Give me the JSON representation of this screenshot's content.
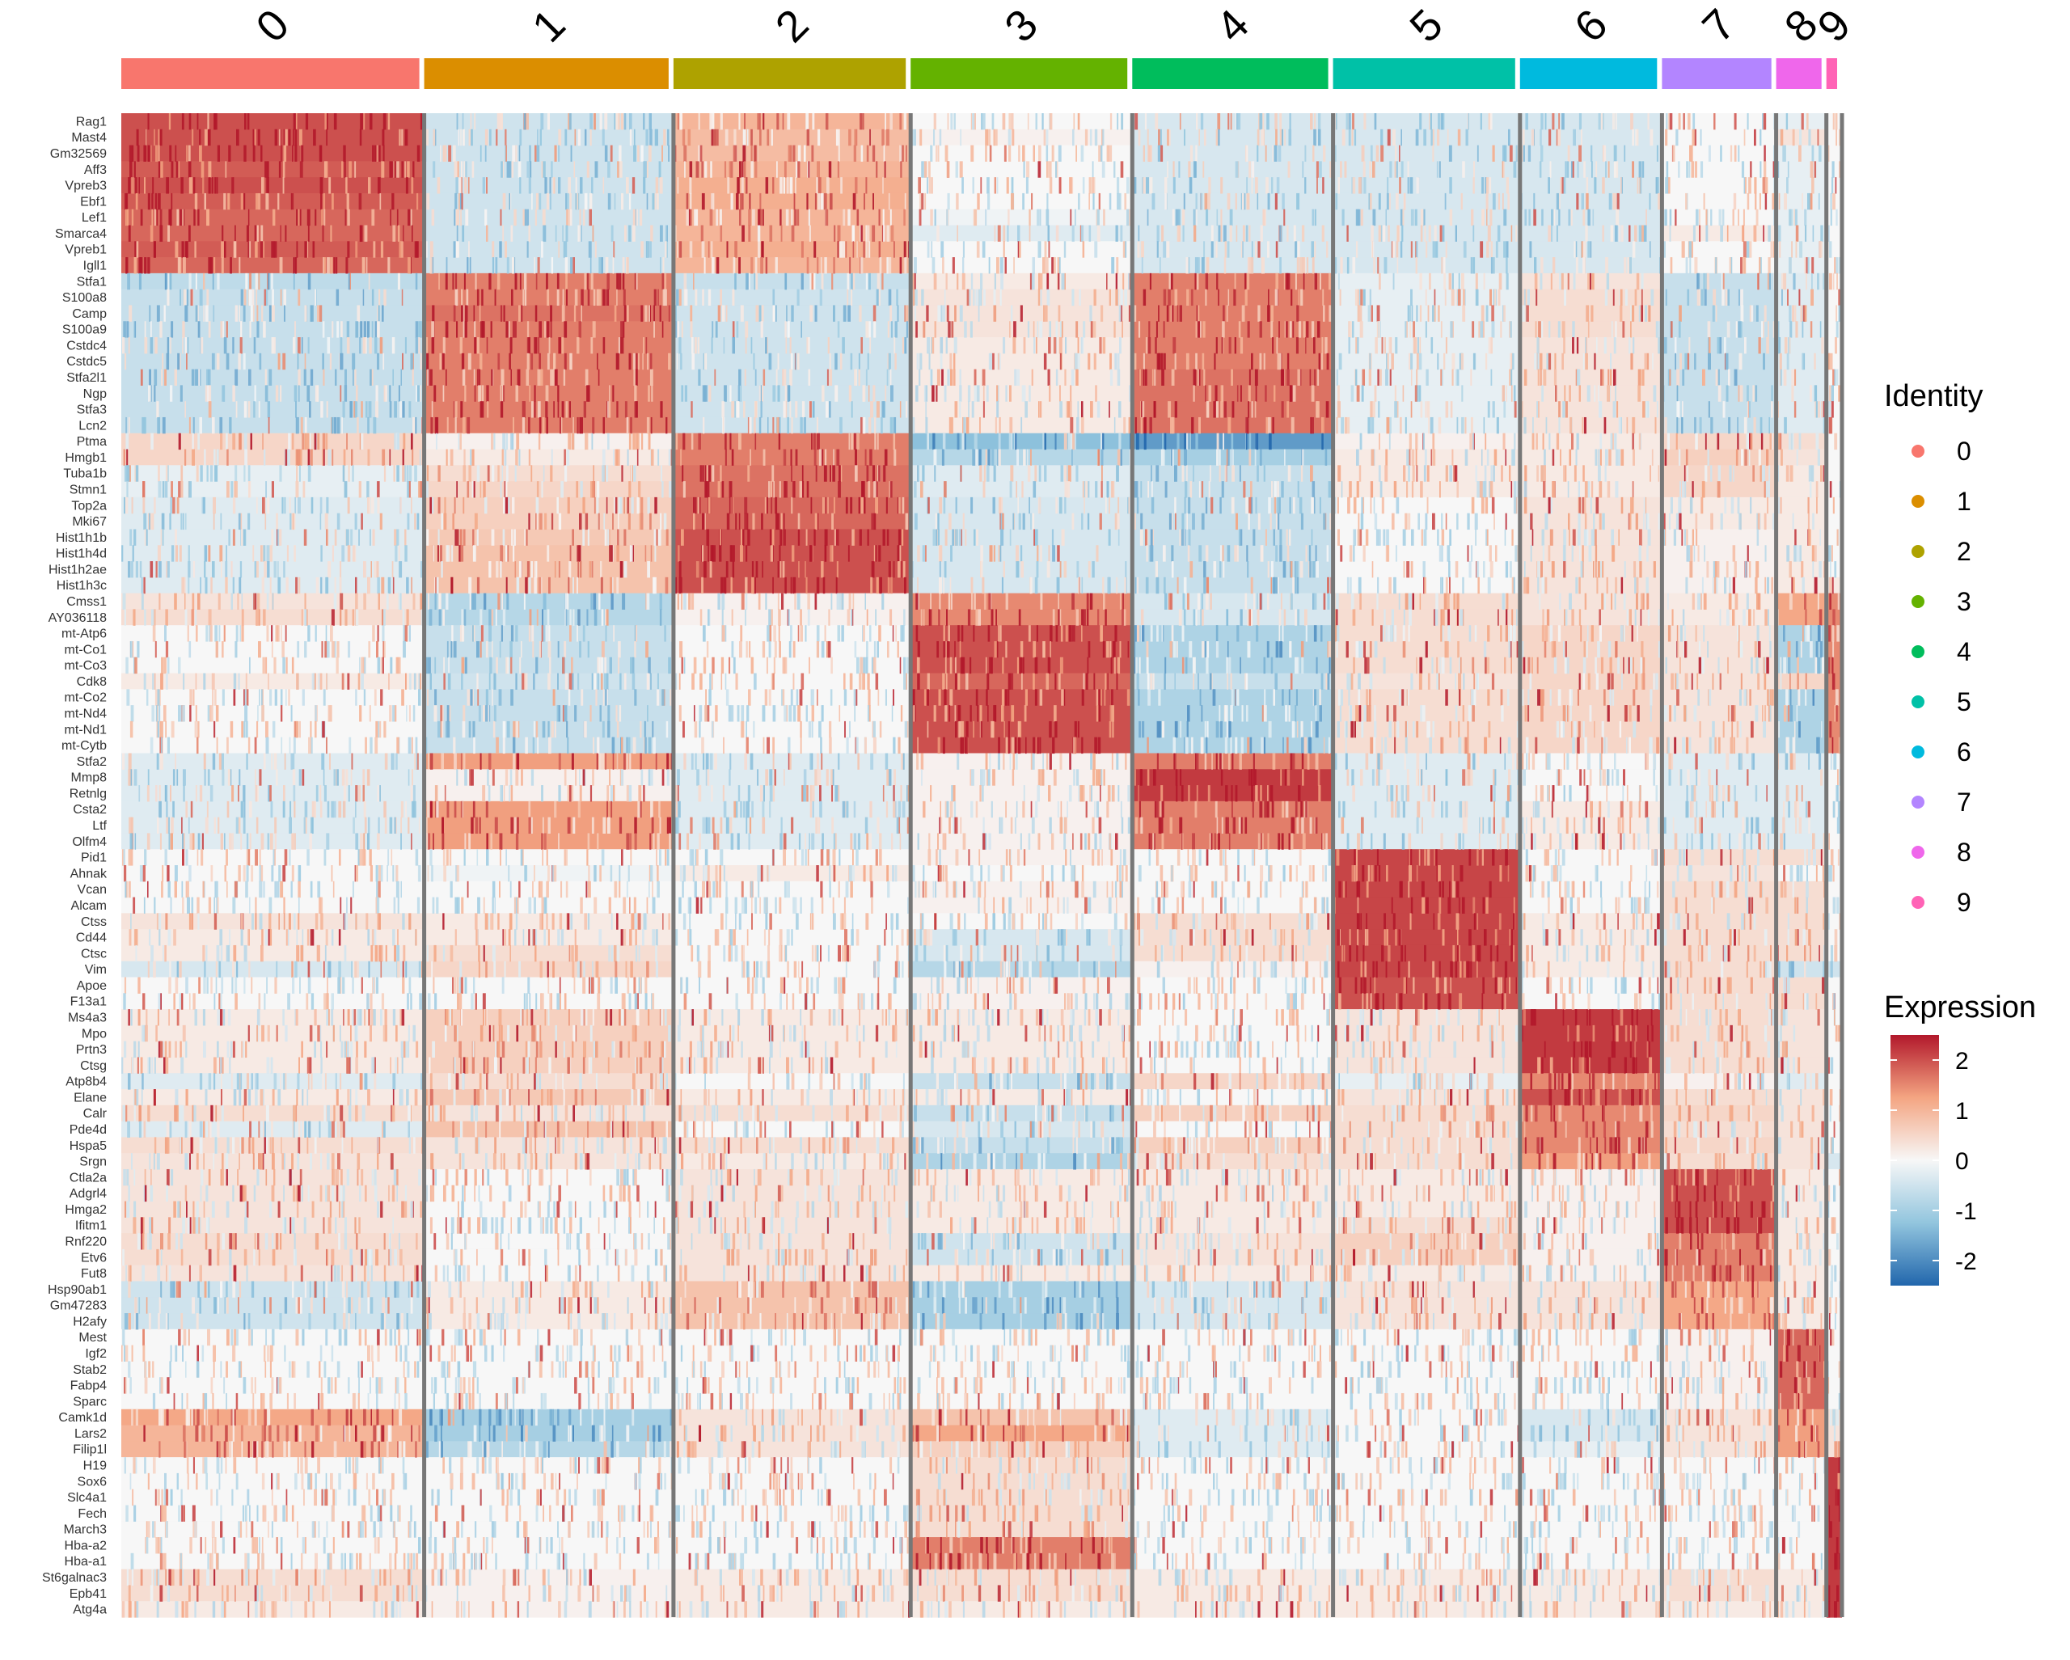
{
  "chart_data": {
    "type": "heatmap",
    "title": "",
    "clusters": [
      {
        "label": "0",
        "color": "#F8766D",
        "fraction": 0.175
      },
      {
        "label": "1",
        "color": "#DB8E00",
        "fraction": 0.144
      },
      {
        "label": "2",
        "color": "#AEA200",
        "fraction": 0.137
      },
      {
        "label": "3",
        "color": "#64B200",
        "fraction": 0.128
      },
      {
        "label": "4",
        "color": "#00BD5C",
        "fraction": 0.116
      },
      {
        "label": "5",
        "color": "#00C1A7",
        "fraction": 0.108
      },
      {
        "label": "6",
        "color": "#00BADE",
        "fraction": 0.082
      },
      {
        "label": "7",
        "color": "#B385FF",
        "fraction": 0.066
      },
      {
        "label": "8",
        "color": "#EF67EB",
        "fraction": 0.029
      },
      {
        "label": "9",
        "color": "#FF63B6",
        "fraction": 0.009
      }
    ],
    "genes": [
      "Rag1",
      "Mast4",
      "Gm32569",
      "Aff3",
      "Vpreb3",
      "Ebf1",
      "Lef1",
      "Smarca4",
      "Vpreb1",
      "Igll1",
      "Stfa1",
      "S100a8",
      "Camp",
      "S100a9",
      "Cstdc4",
      "Cstdc5",
      "Stfa2l1",
      "Ngp",
      "Stfa3",
      "Lcn2",
      "Ptma",
      "Hmgb1",
      "Tuba1b",
      "Stmn1",
      "Top2a",
      "Mki67",
      "Hist1h1b",
      "Hist1h4d",
      "Hist1h2ae",
      "Hist1h3c",
      "Cmss1",
      "AY036118",
      "mt-Atp6",
      "mt-Co1",
      "mt-Co3",
      "Cdk8",
      "mt-Co2",
      "mt-Nd4",
      "mt-Nd1",
      "mt-Cytb",
      "Stfa2",
      "Mmp8",
      "Retnlg",
      "Csta2",
      "Ltf",
      "Olfm4",
      "Pid1",
      "Ahnak",
      "Vcan",
      "Alcam",
      "Ctss",
      "Cd44",
      "Ctsc",
      "Vim",
      "Apoe",
      "F13a1",
      "Ms4a3",
      "Mpo",
      "Prtn3",
      "Ctsg",
      "Atp8b4",
      "Elane",
      "Calr",
      "Pde4d",
      "Hspa5",
      "Srgn",
      "Ctla2a",
      "Adgrl4",
      "Hmga2",
      "Ifitm1",
      "Rnf220",
      "Etv6",
      "Fut8",
      "Hsp90ab1",
      "Gm47283",
      "H2afy",
      "Mest",
      "Igf2",
      "Stab2",
      "Fabp4",
      "Sparc",
      "Camk1d",
      "Lars2",
      "Filip1l",
      "H19",
      "Sox6",
      "Slc4a1",
      "Fech",
      "March3",
      "Hba-a2",
      "Hba-a1",
      "St6galnac3",
      "Epb41",
      "Atg4a"
    ],
    "mean_expression": [
      [
        2.0,
        -0.5,
        1.0,
        0,
        -0.4,
        -0.4,
        -0.4,
        0,
        -0.2,
        0
      ],
      [
        2.0,
        -0.5,
        0.9,
        0.1,
        -0.4,
        -0.4,
        -0.4,
        0,
        0.3,
        0
      ],
      [
        2.0,
        -0.5,
        0.9,
        0,
        -0.4,
        -0.4,
        -0.4,
        0,
        -0.2,
        0
      ],
      [
        1.9,
        -0.5,
        1.0,
        0,
        -0.4,
        -0.4,
        -0.4,
        0,
        -0.2,
        0
      ],
      [
        2.0,
        -0.5,
        1.1,
        0,
        -0.4,
        -0.4,
        -0.4,
        0,
        -0.2,
        0
      ],
      [
        1.9,
        -0.5,
        1.1,
        0,
        -0.4,
        -0.4,
        -0.4,
        0,
        -0.2,
        0
      ],
      [
        1.8,
        -0.5,
        1.0,
        -0.1,
        -0.4,
        -0.4,
        -0.4,
        0,
        -0.2,
        0
      ],
      [
        1.8,
        -0.5,
        1.0,
        -0.3,
        -0.4,
        -0.4,
        -0.4,
        0.2,
        -0.2,
        0
      ],
      [
        1.9,
        -0.5,
        1.1,
        0,
        -0.4,
        -0.4,
        -0.4,
        0,
        -0.2,
        0
      ],
      [
        1.8,
        -0.5,
        1.0,
        0,
        -0.4,
        -0.4,
        -0.4,
        0,
        -0.2,
        0
      ],
      [
        -0.7,
        1.6,
        -0.6,
        0.2,
        1.6,
        -0.2,
        0.3,
        -0.6,
        -0.3,
        0
      ],
      [
        -0.6,
        1.6,
        -0.5,
        0.3,
        1.6,
        -0.2,
        0.4,
        -0.6,
        -0.3,
        0
      ],
      [
        -0.6,
        1.7,
        -0.5,
        0.3,
        1.6,
        -0.2,
        0.4,
        -0.6,
        -0.3,
        0
      ],
      [
        -0.6,
        1.6,
        -0.5,
        0.3,
        1.6,
        -0.2,
        0.4,
        -0.6,
        -0.3,
        0
      ],
      [
        -0.6,
        1.6,
        -0.5,
        0.2,
        1.6,
        -0.2,
        0.3,
        -0.6,
        -0.3,
        0
      ],
      [
        -0.6,
        1.6,
        -0.5,
        0.2,
        1.6,
        -0.2,
        0.3,
        -0.6,
        -0.3,
        0
      ],
      [
        -0.6,
        1.6,
        -0.5,
        0.2,
        1.7,
        -0.2,
        0.3,
        -0.6,
        -0.3,
        0
      ],
      [
        -0.6,
        1.6,
        -0.5,
        0.2,
        1.7,
        -0.2,
        0.3,
        -0.6,
        -0.3,
        0
      ],
      [
        -0.6,
        1.6,
        -0.5,
        0.2,
        1.7,
        -0.2,
        0.3,
        -0.6,
        -0.3,
        0
      ],
      [
        -0.6,
        1.6,
        -0.5,
        0.2,
        1.7,
        -0.2,
        0.3,
        -0.6,
        -0.3,
        0
      ],
      [
        0.5,
        0.1,
        1.6,
        -1.3,
        -1.8,
        0.1,
        0.2,
        0.5,
        0.4,
        0
      ],
      [
        0.5,
        0.2,
        1.6,
        -0.8,
        -1.0,
        0.2,
        0.2,
        0.6,
        0.3,
        0
      ],
      [
        -0.2,
        0.4,
        1.7,
        -0.3,
        -0.6,
        0.2,
        0.2,
        0.5,
        0.2,
        0
      ],
      [
        -0.2,
        0.5,
        1.7,
        -0.3,
        -0.6,
        0.2,
        0.2,
        0.5,
        0.2,
        0
      ],
      [
        -0.3,
        0.6,
        1.8,
        -0.4,
        -0.6,
        0,
        0.3,
        0.2,
        0.2,
        0
      ],
      [
        -0.3,
        0.6,
        1.8,
        -0.4,
        -0.6,
        0,
        0.3,
        0.2,
        0.2,
        0
      ],
      [
        -0.3,
        0.7,
        2.0,
        -0.4,
        -0.6,
        0,
        0.3,
        0.1,
        0.2,
        0
      ],
      [
        -0.3,
        0.8,
        2.0,
        -0.4,
        -0.6,
        0,
        0.3,
        0.1,
        0.2,
        0
      ],
      [
        -0.3,
        0.8,
        2.0,
        -0.4,
        -0.6,
        0,
        0.3,
        0.1,
        0.2,
        0
      ],
      [
        -0.3,
        0.8,
        2.0,
        -0.4,
        -0.6,
        0,
        0.3,
        0.1,
        0.2,
        0.2
      ],
      [
        0.3,
        -0.8,
        0.1,
        1.5,
        -0.4,
        0.4,
        0.3,
        0.2,
        1.2,
        1.5
      ],
      [
        0.4,
        -0.8,
        0.1,
        1.5,
        -0.4,
        0.4,
        0.3,
        0.2,
        1.2,
        1.5
      ],
      [
        0,
        -0.6,
        0,
        2.0,
        -0.9,
        0.4,
        0.5,
        0.3,
        -0.9,
        1.5
      ],
      [
        0,
        -0.6,
        0,
        2.0,
        -0.9,
        0.4,
        0.5,
        0.3,
        -0.9,
        1.5
      ],
      [
        0,
        -0.6,
        0,
        2.0,
        -0.9,
        0.4,
        0.5,
        0.3,
        -0.9,
        1.5
      ],
      [
        0.2,
        -0.5,
        0,
        1.8,
        -0.6,
        0.3,
        0.5,
        0.3,
        0.5,
        1.5
      ],
      [
        0,
        -0.6,
        0,
        2.0,
        -0.9,
        0.4,
        0.5,
        0.3,
        -0.9,
        1.5
      ],
      [
        0,
        -0.6,
        0,
        2.0,
        -0.9,
        0.4,
        0.5,
        0.3,
        -0.9,
        1.5
      ],
      [
        0,
        -0.6,
        0,
        2.0,
        -0.9,
        0.4,
        0.5,
        0.3,
        -0.9,
        1.5
      ],
      [
        0,
        -0.6,
        0,
        2.0,
        -0.9,
        0.4,
        0.5,
        0.3,
        -0.9,
        1.5
      ],
      [
        -0.3,
        1.3,
        -0.3,
        0.1,
        1.6,
        -0.3,
        0,
        -0.3,
        -0.3,
        0
      ],
      [
        -0.3,
        0.1,
        -0.3,
        0.1,
        2.2,
        -0.3,
        0,
        -0.3,
        -0.3,
        0
      ],
      [
        -0.3,
        0.1,
        -0.3,
        0.1,
        2.2,
        -0.3,
        0,
        -0.3,
        -0.3,
        0
      ],
      [
        -0.3,
        1.3,
        -0.3,
        0.1,
        1.6,
        -0.3,
        0.2,
        -0.3,
        -0.3,
        0
      ],
      [
        -0.3,
        1.3,
        -0.3,
        0.1,
        1.6,
        -0.3,
        0.2,
        -0.3,
        -0.3,
        0
      ],
      [
        -0.3,
        1.3,
        -0.3,
        0.1,
        1.6,
        -0.3,
        0.2,
        -0.3,
        -0.3,
        0
      ],
      [
        0,
        0,
        0,
        0.1,
        0,
        2.1,
        0,
        0.4,
        0.4,
        0
      ],
      [
        0,
        -0.1,
        0.2,
        0,
        0,
        2.1,
        0,
        0.3,
        0,
        0
      ],
      [
        0,
        0,
        0,
        0.1,
        0,
        2.1,
        0,
        0.4,
        0.4,
        0
      ],
      [
        0,
        0,
        0,
        0.1,
        0,
        2.1,
        0,
        0.4,
        0.4,
        0
      ],
      [
        0.3,
        0.2,
        0,
        0,
        0.4,
        2.1,
        0.2,
        0.4,
        0.4,
        0
      ],
      [
        0.2,
        0.2,
        0,
        -0.4,
        0.4,
        2.1,
        0.2,
        0.4,
        0.4,
        0
      ],
      [
        0.2,
        0.4,
        0,
        -0.4,
        0.4,
        2.1,
        0.2,
        0.4,
        0.4,
        0
      ],
      [
        -0.4,
        0.5,
        0,
        -0.8,
        0.1,
        2.1,
        0.2,
        0.4,
        -0.5,
        -0.5
      ],
      [
        0,
        0,
        0,
        0.1,
        0,
        2.0,
        0,
        0.4,
        0.4,
        0
      ],
      [
        0,
        0,
        0,
        0.1,
        0,
        2.0,
        0,
        0.4,
        0.4,
        0
      ],
      [
        0.2,
        0.6,
        0.2,
        0.2,
        0,
        0.3,
        2.2,
        0.4,
        0.3,
        0
      ],
      [
        0.2,
        0.6,
        0.2,
        0.2,
        0,
        0.3,
        2.2,
        0.4,
        0.3,
        0
      ],
      [
        0.2,
        0.6,
        0.2,
        0.2,
        0,
        0.3,
        2.2,
        0.4,
        0.3,
        0
      ],
      [
        0.2,
        0.6,
        0.2,
        0.2,
        0,
        0.3,
        2.2,
        0.4,
        0.3,
        0
      ],
      [
        -0.3,
        0.4,
        0,
        -0.6,
        0.5,
        -0.2,
        1.5,
        0.1,
        -0.3,
        0
      ],
      [
        0.2,
        0.7,
        0.2,
        0.2,
        0,
        0.3,
        2.0,
        0.4,
        0.3,
        0
      ],
      [
        0.4,
        0.3,
        0.4,
        -0.6,
        0.6,
        0.4,
        1.5,
        0.5,
        0.3,
        0
      ],
      [
        -0.3,
        0.8,
        0,
        -0.4,
        0,
        0.4,
        1.5,
        0.4,
        0.3,
        0
      ],
      [
        0.4,
        0.3,
        0.4,
        -0.6,
        0.6,
        0.4,
        1.5,
        0.5,
        0.3,
        0
      ],
      [
        0.3,
        0.3,
        0.2,
        -0.9,
        0.4,
        0.4,
        1.3,
        0.4,
        0.3,
        -0.4
      ],
      [
        0.3,
        0,
        0.3,
        0.2,
        0.2,
        0.2,
        0.1,
        2.0,
        0.2,
        0
      ],
      [
        0.3,
        0,
        0.3,
        0.2,
        0.2,
        0.2,
        0.1,
        2.0,
        0.2,
        0
      ],
      [
        0.3,
        0,
        0.3,
        0.2,
        0.2,
        0.2,
        0.1,
        2.0,
        0.2,
        0
      ],
      [
        0.3,
        0,
        0.3,
        0.2,
        0.2,
        0.4,
        0.1,
        2.0,
        0.2,
        0
      ],
      [
        0.4,
        0,
        0.3,
        -0.5,
        0.3,
        0.6,
        0.1,
        1.6,
        0.2,
        0
      ],
      [
        0.4,
        0,
        0.3,
        -0.5,
        0.3,
        0.6,
        0.1,
        1.6,
        0.2,
        0
      ],
      [
        0.3,
        0,
        0.3,
        0.2,
        0.2,
        0.2,
        0.1,
        1.6,
        0.2,
        0
      ],
      [
        -0.5,
        0.2,
        0.8,
        -1.0,
        -0.4,
        0.3,
        0.3,
        1.2,
        0.2,
        0
      ],
      [
        -0.5,
        0.2,
        0.8,
        -1.0,
        -0.4,
        0.3,
        0.3,
        1.2,
        0.2,
        0
      ],
      [
        -0.5,
        0.2,
        0.8,
        -1.0,
        -0.4,
        0.3,
        0.3,
        1.2,
        0.2,
        0
      ],
      [
        0,
        0,
        0,
        0,
        0,
        0,
        0,
        0.1,
        1.8,
        0
      ],
      [
        0,
        0,
        0,
        0,
        0,
        0,
        0,
        0.1,
        1.8,
        0
      ],
      [
        0,
        0,
        0,
        0,
        0,
        0,
        0,
        0.1,
        1.8,
        0
      ],
      [
        0,
        0,
        0,
        0,
        0,
        0,
        0,
        0.1,
        1.8,
        0
      ],
      [
        0,
        0,
        0,
        0,
        0,
        0,
        0,
        0.1,
        1.8,
        0
      ],
      [
        1.2,
        -1.0,
        0.3,
        0.8,
        -0.3,
        0,
        -0.4,
        0.3,
        1.3,
        0.3
      ],
      [
        1.0,
        -1.0,
        0.3,
        1.2,
        -0.3,
        0,
        -0.4,
        0.3,
        1.3,
        0.3
      ],
      [
        1.0,
        -0.8,
        0.3,
        0.6,
        -0.3,
        0,
        -0.2,
        0.3,
        1.3,
        0.3
      ],
      [
        0,
        0,
        0,
        0.4,
        0,
        0,
        0,
        0,
        0,
        2.2
      ],
      [
        0,
        0,
        0,
        0.4,
        0,
        0,
        0,
        0,
        0,
        2.2
      ],
      [
        0,
        0,
        0,
        0.4,
        0,
        0,
        0,
        0,
        0,
        2.2
      ],
      [
        0,
        0,
        0,
        0.4,
        0,
        0,
        0,
        0,
        0,
        2.2
      ],
      [
        0,
        0,
        0,
        0.4,
        0,
        0,
        0,
        0,
        0,
        2.2
      ],
      [
        0,
        0,
        0,
        1.6,
        0,
        0,
        0,
        0,
        0,
        2.2
      ],
      [
        0,
        0,
        0,
        1.6,
        0,
        0,
        0,
        0,
        0,
        2.2
      ],
      [
        0.4,
        0.1,
        0.2,
        0.4,
        0.2,
        0.2,
        0.2,
        0.4,
        0.2,
        2.2
      ],
      [
        0.4,
        0.1,
        0.2,
        0.4,
        0.2,
        0.2,
        0.2,
        0.4,
        0.2,
        2.2
      ],
      [
        0.2,
        0.1,
        0.2,
        0.2,
        0.2,
        0.2,
        0.2,
        0.2,
        0.2,
        2.2
      ]
    ],
    "color_scale": {
      "min": -2.5,
      "max": 2.5,
      "stops": [
        {
          "value": -2.5,
          "color": "#2166AC"
        },
        {
          "value": -1.25,
          "color": "#92C5DE"
        },
        {
          "value": 0,
          "color": "#F7F7F7"
        },
        {
          "value": 1.25,
          "color": "#F4A582"
        },
        {
          "value": 2.5,
          "color": "#B2182B"
        }
      ]
    },
    "legend_identity": {
      "title": "Identity",
      "items": [
        {
          "label": "0",
          "color": "#F8766D"
        },
        {
          "label": "1",
          "color": "#DB8E00"
        },
        {
          "label": "2",
          "color": "#AEA200"
        },
        {
          "label": "3",
          "color": "#64B200"
        },
        {
          "label": "4",
          "color": "#00BD5C"
        },
        {
          "label": "5",
          "color": "#00C1A7"
        },
        {
          "label": "6",
          "color": "#00BADE"
        },
        {
          "label": "7",
          "color": "#B385FF"
        },
        {
          "label": "8",
          "color": "#EF67EB"
        },
        {
          "label": "9",
          "color": "#FF63B6"
        }
      ]
    },
    "legend_expression": {
      "title": "Expression",
      "ticks": [
        2,
        1,
        0,
        -1,
        -2
      ],
      "tick_labels": [
        "2",
        "1",
        "0",
        "-1",
        "-2"
      ]
    },
    "legend_placement": "right"
  }
}
